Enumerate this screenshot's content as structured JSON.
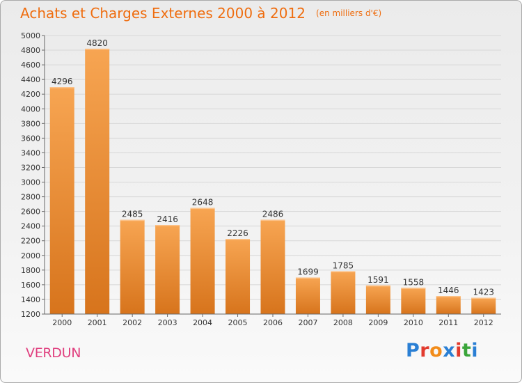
{
  "header": {
    "title": "Achats et Charges Externes 2000 à 2012",
    "unit": "(en milliers d'€)"
  },
  "footer": {
    "city": "VERDUN",
    "logo_text": "Proxiti",
    "logo_colors": [
      "#2a7fd4",
      "#e23b2e",
      "#f28c1a",
      "#2a7fd4",
      "#e23b2e",
      "#3aa53a",
      "#2a7fd4"
    ]
  },
  "chart_data": {
    "type": "bar",
    "title": "Achats et Charges Externes 2000 à 2012",
    "subtitle": "(en milliers d'€)",
    "xlabel": "",
    "ylabel": "",
    "categories": [
      "2000",
      "2001",
      "2002",
      "2003",
      "2004",
      "2005",
      "2006",
      "2007",
      "2008",
      "2009",
      "2010",
      "2011",
      "2012"
    ],
    "values": [
      4296,
      4820,
      2485,
      2416,
      2648,
      2226,
      2486,
      1699,
      1785,
      1591,
      1558,
      1446,
      1423
    ],
    "ylim": [
      1200,
      5000
    ],
    "yticks": [
      1200,
      1400,
      1600,
      1800,
      2000,
      2200,
      2400,
      2600,
      2800,
      3000,
      3200,
      3400,
      3600,
      3800,
      4000,
      4200,
      4400,
      4600,
      4800,
      5000
    ],
    "grid": true,
    "legend": "none",
    "colors": {
      "bar_light": "#f7a552",
      "bar_dark": "#d7741c",
      "grid": "#d7d7d7",
      "axis": "#666666"
    }
  }
}
